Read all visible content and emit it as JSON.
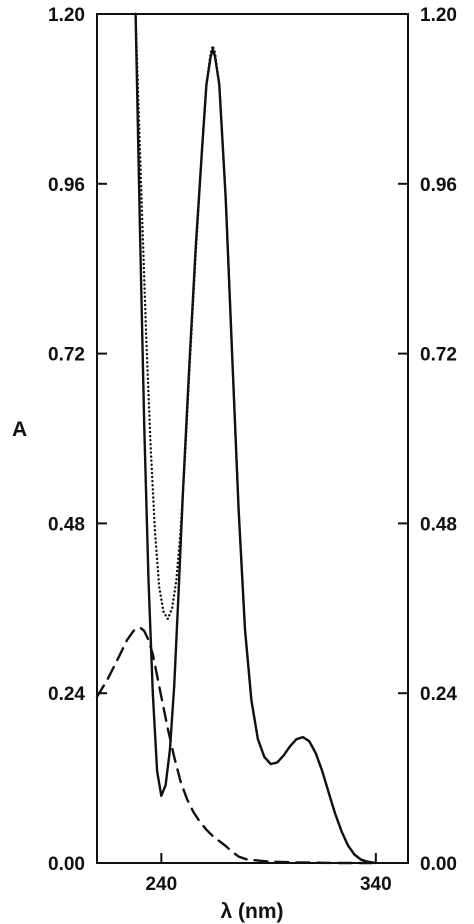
{
  "chart_data": {
    "type": "line",
    "xlabel": "λ (nm)",
    "ylabel": "A",
    "xlim": [
      210,
      355
    ],
    "ylim": [
      0.0,
      1.2
    ],
    "x_ticks": [
      240,
      340
    ],
    "x_tick_labels": [
      "240",
      "340"
    ],
    "y_ticks": [
      0.0,
      0.24,
      0.48,
      0.72,
      0.96,
      1.2
    ],
    "y_tick_labels": [
      "0.00",
      "0.24",
      "0.48",
      "0.72",
      "0.96",
      "1.20"
    ],
    "right_axis_tick_labels": [
      "0.00",
      "0.24",
      "0.48",
      "0.72",
      "0.96",
      "1.20"
    ],
    "grid": false,
    "series": [
      {
        "style": "solid",
        "color": "#111111",
        "points": [
          [
            228,
            1.2
          ],
          [
            230,
            0.9
          ],
          [
            232,
            0.62
          ],
          [
            234,
            0.4
          ],
          [
            236,
            0.24
          ],
          [
            238,
            0.13
          ],
          [
            240,
            0.095
          ],
          [
            242,
            0.11
          ],
          [
            244,
            0.16
          ],
          [
            246,
            0.25
          ],
          [
            248,
            0.38
          ],
          [
            250,
            0.52
          ],
          [
            253,
            0.7
          ],
          [
            256,
            0.87
          ],
          [
            259,
            1.01
          ],
          [
            261,
            1.1
          ],
          [
            263,
            1.14
          ],
          [
            264,
            1.15
          ],
          [
            265,
            1.14
          ],
          [
            267,
            1.1
          ],
          [
            270,
            0.94
          ],
          [
            273,
            0.72
          ],
          [
            276,
            0.5
          ],
          [
            279,
            0.33
          ],
          [
            282,
            0.23
          ],
          [
            285,
            0.175
          ],
          [
            288,
            0.15
          ],
          [
            291,
            0.14
          ],
          [
            294,
            0.142
          ],
          [
            297,
            0.152
          ],
          [
            300,
            0.165
          ],
          [
            303,
            0.175
          ],
          [
            306,
            0.178
          ],
          [
            309,
            0.172
          ],
          [
            312,
            0.155
          ],
          [
            315,
            0.13
          ],
          [
            318,
            0.1
          ],
          [
            321,
            0.07
          ],
          [
            324,
            0.045
          ],
          [
            327,
            0.025
          ],
          [
            330,
            0.012
          ],
          [
            333,
            0.005
          ],
          [
            336,
            0.002
          ],
          [
            340,
            0.0
          ]
        ]
      },
      {
        "style": "dotted",
        "color": "#111111",
        "points": [
          [
            228,
            1.2
          ],
          [
            229,
            1.1
          ],
          [
            231,
            0.92
          ],
          [
            233,
            0.74
          ],
          [
            235,
            0.59
          ],
          [
            237,
            0.47
          ],
          [
            239,
            0.39
          ],
          [
            241,
            0.355
          ],
          [
            243,
            0.345
          ],
          [
            245,
            0.36
          ],
          [
            247,
            0.4
          ],
          [
            249,
            0.47
          ],
          [
            251,
            0.57
          ],
          [
            253,
            0.69
          ],
          [
            256,
            0.86
          ],
          [
            259,
            1.01
          ],
          [
            261,
            1.1
          ],
          [
            263,
            1.145
          ],
          [
            264,
            1.155
          ],
          [
            265,
            1.145
          ],
          [
            267,
            1.1
          ],
          [
            270,
            0.94
          ],
          [
            273,
            0.72
          ],
          [
            276,
            0.5
          ],
          [
            279,
            0.33
          ],
          [
            282,
            0.23
          ],
          [
            285,
            0.175
          ],
          [
            288,
            0.15
          ],
          [
            291,
            0.14
          ],
          [
            294,
            0.142
          ],
          [
            297,
            0.152
          ],
          [
            300,
            0.165
          ],
          [
            303,
            0.175
          ],
          [
            306,
            0.178
          ],
          [
            309,
            0.172
          ],
          [
            312,
            0.155
          ],
          [
            315,
            0.13
          ],
          [
            318,
            0.1
          ],
          [
            321,
            0.07
          ],
          [
            324,
            0.045
          ],
          [
            327,
            0.025
          ],
          [
            330,
            0.012
          ],
          [
            333,
            0.005
          ],
          [
            336,
            0.002
          ],
          [
            340,
            0.0
          ]
        ]
      },
      {
        "style": "dashed",
        "color": "#111111",
        "points": [
          [
            210,
            0.235
          ],
          [
            215,
            0.26
          ],
          [
            220,
            0.29
          ],
          [
            224,
            0.315
          ],
          [
            227,
            0.328
          ],
          [
            230,
            0.333
          ],
          [
            232,
            0.328
          ],
          [
            234,
            0.315
          ],
          [
            236,
            0.295
          ],
          [
            238,
            0.265
          ],
          [
            240,
            0.235
          ],
          [
            243,
            0.19
          ],
          [
            246,
            0.15
          ],
          [
            249,
            0.115
          ],
          [
            252,
            0.09
          ],
          [
            255,
            0.072
          ],
          [
            258,
            0.058
          ],
          [
            261,
            0.047
          ],
          [
            264,
            0.038
          ],
          [
            267,
            0.031
          ],
          [
            270,
            0.024
          ],
          [
            273,
            0.016
          ],
          [
            276,
            0.009
          ],
          [
            280,
            0.005
          ],
          [
            290,
            0.002
          ],
          [
            300,
            0.001
          ],
          [
            320,
            0.0
          ],
          [
            340,
            0.0
          ]
        ]
      }
    ]
  }
}
